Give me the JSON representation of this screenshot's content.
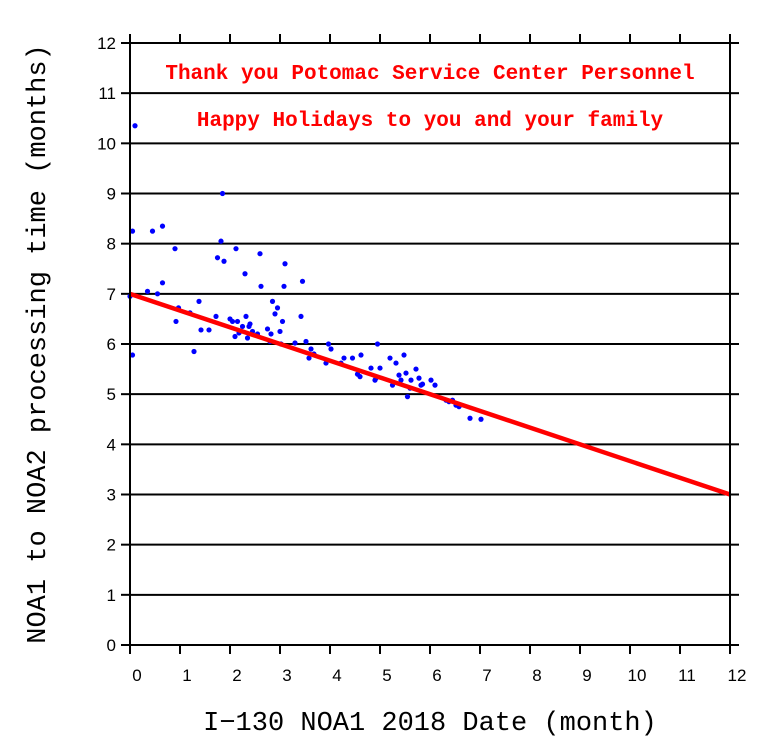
{
  "chart_data": {
    "type": "scatter",
    "xlabel": "I−130 NOA1 2018 Date (month)",
    "ylabel": "NOA1 to NOA2 processing time (months)",
    "xlim": [
      0,
      12
    ],
    "ylim": [
      0,
      12
    ],
    "x_ticks": [
      "0",
      "1",
      "2",
      "3",
      "4",
      "5",
      "6",
      "7",
      "8",
      "9",
      "10",
      "11",
      "12"
    ],
    "y_ticks": [
      "0",
      "1",
      "2",
      "3",
      "4",
      "5",
      "6",
      "7",
      "8",
      "9",
      "10",
      "11",
      "12"
    ],
    "grid": "horizontal",
    "annotations": [
      "Thank you Potomac Service Center Personnel",
      "Happy Holidays to you and your family"
    ],
    "colors": {
      "points": "#0000ff",
      "trend": "#ff0000",
      "annotation": "#ff0000",
      "grid": "#000000"
    },
    "trend_line": {
      "x": [
        0,
        12
      ],
      "y": [
        7.0,
        3.0
      ]
    },
    "points": [
      [
        0.1,
        10.35
      ],
      [
        0.05,
        8.25
      ],
      [
        0.0,
        6.95
      ],
      [
        0.05,
        5.78
      ],
      [
        0.35,
        7.05
      ],
      [
        0.45,
        8.25
      ],
      [
        0.55,
        7.0
      ],
      [
        0.65,
        8.35
      ],
      [
        0.65,
        7.22
      ],
      [
        0.9,
        7.9
      ],
      [
        0.92,
        6.45
      ],
      [
        0.97,
        6.72
      ],
      [
        1.2,
        6.62
      ],
      [
        1.28,
        5.85
      ],
      [
        1.38,
        6.85
      ],
      [
        1.42,
        6.28
      ],
      [
        1.58,
        6.28
      ],
      [
        1.72,
        6.55
      ],
      [
        1.75,
        7.72
      ],
      [
        1.82,
        8.05
      ],
      [
        1.85,
        9.0
      ],
      [
        1.88,
        7.65
      ],
      [
        2.0,
        6.5
      ],
      [
        2.05,
        6.45
      ],
      [
        2.1,
        6.15
      ],
      [
        2.12,
        7.9
      ],
      [
        2.15,
        6.45
      ],
      [
        2.18,
        6.22
      ],
      [
        2.25,
        6.35
      ],
      [
        2.3,
        7.4
      ],
      [
        2.32,
        6.55
      ],
      [
        2.35,
        6.12
      ],
      [
        2.38,
        6.35
      ],
      [
        2.4,
        6.4
      ],
      [
        2.45,
        6.25
      ],
      [
        2.55,
        6.2
      ],
      [
        2.6,
        7.8
      ],
      [
        2.62,
        7.15
      ],
      [
        2.75,
        6.3
      ],
      [
        2.8,
        6.05
      ],
      [
        2.82,
        6.2
      ],
      [
        2.85,
        6.85
      ],
      [
        2.9,
        6.6
      ],
      [
        2.95,
        6.72
      ],
      [
        3.0,
        6.25
      ],
      [
        3.02,
        6.0
      ],
      [
        3.05,
        6.45
      ],
      [
        3.08,
        7.15
      ],
      [
        3.1,
        7.6
      ],
      [
        3.3,
        6.02
      ],
      [
        3.42,
        6.55
      ],
      [
        3.45,
        7.25
      ],
      [
        3.52,
        6.05
      ],
      [
        3.58,
        5.72
      ],
      [
        3.62,
        5.9
      ],
      [
        3.68,
        5.8
      ],
      [
        3.92,
        5.62
      ],
      [
        3.97,
        6.0
      ],
      [
        4.02,
        5.9
      ],
      [
        4.22,
        5.62
      ],
      [
        4.28,
        5.72
      ],
      [
        4.45,
        5.72
      ],
      [
        4.55,
        5.4
      ],
      [
        4.6,
        5.35
      ],
      [
        4.62,
        5.78
      ],
      [
        4.82,
        5.52
      ],
      [
        4.9,
        5.28
      ],
      [
        4.92,
        5.32
      ],
      [
        4.95,
        6.0
      ],
      [
        5.0,
        5.52
      ],
      [
        5.2,
        5.72
      ],
      [
        5.25,
        5.18
      ],
      [
        5.32,
        5.62
      ],
      [
        5.38,
        5.38
      ],
      [
        5.42,
        5.28
      ],
      [
        5.48,
        5.78
      ],
      [
        5.52,
        5.42
      ],
      [
        5.55,
        4.95
      ],
      [
        5.6,
        5.12
      ],
      [
        5.62,
        5.28
      ],
      [
        5.72,
        5.5
      ],
      [
        5.78,
        5.32
      ],
      [
        5.82,
        5.18
      ],
      [
        5.85,
        5.2
      ],
      [
        6.02,
        5.28
      ],
      [
        6.1,
        5.18
      ],
      [
        6.32,
        4.88
      ],
      [
        6.38,
        4.85
      ],
      [
        6.45,
        4.88
      ],
      [
        6.52,
        4.78
      ],
      [
        6.58,
        4.75
      ],
      [
        6.8,
        4.52
      ],
      [
        7.02,
        4.5
      ]
    ]
  }
}
